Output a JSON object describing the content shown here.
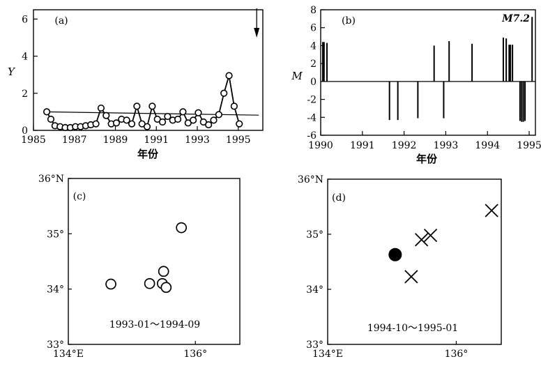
{
  "chart_data": [
    {
      "panel": "(a)",
      "type": "line",
      "xlabel": "年份",
      "ylabel": "Y",
      "xlim": [
        1985,
        1996.2
      ],
      "ylim": [
        0,
        6.5
      ],
      "x_ticks": [
        1985,
        1987,
        1989,
        1991,
        1993,
        1995
      ],
      "y_ticks": [
        0,
        2,
        4,
        6
      ],
      "series": [
        {
          "x": [
            1985.65,
            1985.85,
            1986.05,
            1986.3,
            1986.55,
            1986.8,
            1987.05,
            1987.3,
            1987.55,
            1987.8,
            1988.05,
            1988.3,
            1988.55,
            1988.8,
            1989.05,
            1989.3,
            1989.55,
            1989.8,
            1990.05,
            1990.3,
            1990.55,
            1990.8,
            1991.05,
            1991.3,
            1991.55,
            1991.8,
            1992.05,
            1992.3,
            1992.55,
            1992.8,
            1993.05,
            1993.3,
            1993.55,
            1993.8,
            1994.05,
            1994.3,
            1994.55,
            1994.8,
            1995.05
          ],
          "y": [
            1.0,
            0.6,
            0.25,
            0.2,
            0.15,
            0.15,
            0.2,
            0.2,
            0.25,
            0.3,
            0.35,
            1.2,
            0.8,
            0.35,
            0.4,
            0.6,
            0.55,
            0.35,
            1.3,
            0.35,
            0.2,
            1.3,
            0.6,
            0.45,
            0.75,
            0.55,
            0.6,
            1.0,
            0.4,
            0.55,
            0.95,
            0.45,
            0.3,
            0.55,
            0.85,
            2.0,
            2.95,
            1.3,
            0.35
          ]
        }
      ],
      "trend_line": {
        "x": [
          1985.5,
          1996.0
        ],
        "y": [
          1.0,
          0.82
        ]
      },
      "arrow_at_x": 1995.9
    },
    {
      "panel": "(b)",
      "type": "bar",
      "xlabel": "年份",
      "ylabel": "M",
      "xlim": [
        1990,
        1995.15
      ],
      "ylim": [
        -6,
        8
      ],
      "x_ticks": [
        1990,
        1991,
        1992,
        1993,
        1994,
        1995
      ],
      "y_ticks": [
        -6,
        -4,
        -2,
        0,
        2,
        4,
        6,
        8
      ],
      "annotation": "M7.2",
      "events": {
        "x": [
          1990.05,
          1990.08,
          1990.15,
          1991.65,
          1991.85,
          1992.33,
          1992.72,
          1992.95,
          1993.08,
          1993.63,
          1994.38,
          1994.45,
          1994.52,
          1994.55,
          1994.6,
          1994.78,
          1994.82,
          1994.86,
          1994.9,
          1995.07
        ],
        "y": [
          4.4,
          4.4,
          4.3,
          -4.3,
          -4.3,
          -4.1,
          4.0,
          -4.1,
          4.5,
          4.2,
          4.9,
          4.8,
          4.1,
          4.1,
          4.1,
          -4.4,
          -4.5,
          -4.5,
          -4.4,
          7.2
        ]
      }
    },
    {
      "panel": "(c)",
      "type": "scatter",
      "xlim": [
        134.0,
        136.7
      ],
      "ylim": [
        33.0,
        36.0
      ],
      "x_ticks": [
        {
          "v": 134,
          "label": "134°E"
        },
        {
          "v": 136,
          "label": "136°"
        }
      ],
      "y_ticks": [
        {
          "v": 33,
          "label": "33°"
        },
        {
          "v": 34,
          "label": "34°"
        },
        {
          "v": 35,
          "label": "35°"
        },
        {
          "v": 36,
          "label": "36°N"
        }
      ],
      "period": "1993-01～1994-09",
      "points": {
        "x": [
          134.67,
          135.28,
          135.48,
          135.54,
          135.78,
          135.5
        ],
        "y": [
          34.09,
          34.1,
          34.1,
          34.03,
          35.11,
          34.32
        ]
      }
    },
    {
      "panel": "(d)",
      "type": "scatter",
      "xlim": [
        134.0,
        136.7
      ],
      "ylim": [
        33.0,
        36.0
      ],
      "x_ticks": [
        {
          "v": 134,
          "label": "134°E"
        },
        {
          "v": 136,
          "label": "136°"
        }
      ],
      "y_ticks": [
        {
          "v": 33,
          "label": "33°"
        },
        {
          "v": 34,
          "label": "34°"
        },
        {
          "v": 35,
          "label": "35°"
        },
        {
          "v": 36,
          "label": "36°N"
        }
      ],
      "period": "1994-10～1995-01",
      "mainshock": {
        "x": 135.05,
        "y": 34.63
      },
      "crosses": {
        "x": [
          135.3,
          135.46,
          135.6,
          136.55
        ],
        "y": [
          34.23,
          34.9,
          34.98,
          35.43
        ]
      }
    }
  ]
}
